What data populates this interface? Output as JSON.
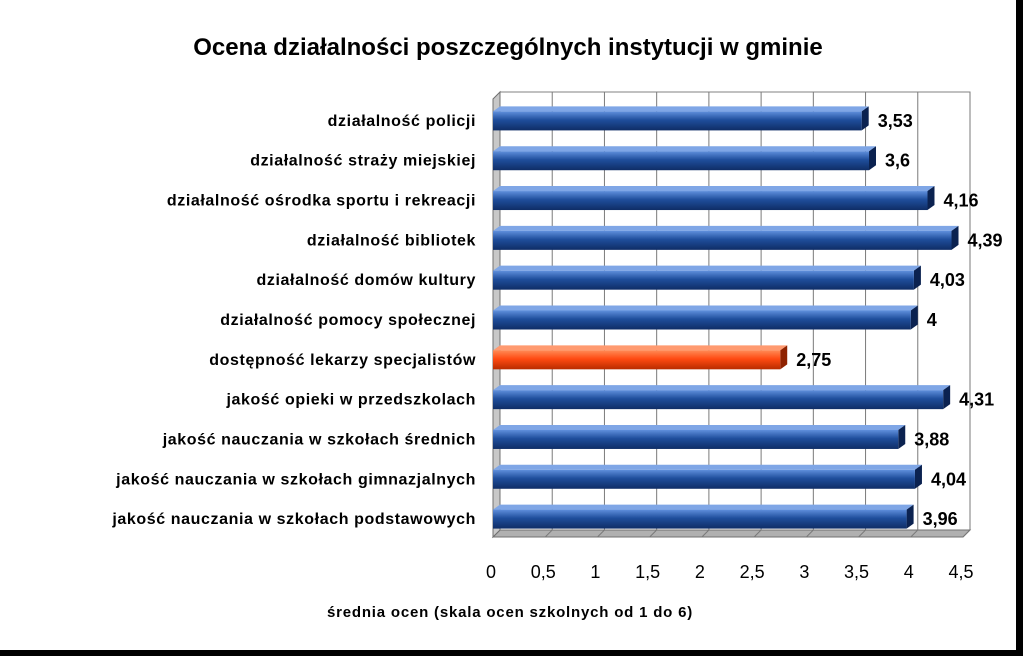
{
  "chart_data": {
    "type": "bar",
    "orientation": "horizontal",
    "title": "Ocena działalności poszczególnych instytucji w gminie",
    "xlabel": "średnia ocen (skala ocen szkolnych od 1 do 6)",
    "ylabel": "",
    "xlim": [
      0,
      4.5
    ],
    "x_ticks": [
      "0",
      "0,5",
      "1",
      "1,5",
      "2",
      "2,5",
      "3",
      "3,5",
      "4",
      "4,5"
    ],
    "grid": true,
    "categories": [
      "działalność policji",
      "działalność straży miejskiej",
      "działalność ośrodka sportu i rekreacji",
      "działalność bibliotek",
      "działalność domów kultury",
      "działalność pomocy społecznej",
      "dostępność lekarzy specjalistów",
      "jakość opieki w przedszkolach",
      "jakość nauczania w szkołach średnich",
      "jakość nauczania w szkołach gimnazjalnych",
      "jakość nauczania w szkołach podstawowych"
    ],
    "values": [
      3.53,
      3.6,
      4.16,
      4.39,
      4.03,
      4,
      2.75,
      4.31,
      3.88,
      4.04,
      3.96
    ],
    "value_labels": [
      "3,53",
      "3,6",
      "4,16",
      "4,39",
      "4,03",
      "4",
      "2,75",
      "4,31",
      "3,88",
      "4,04",
      "3,96"
    ],
    "colors": {
      "default_bar": "#1f4e9c",
      "highlight_bar": "#ff4a12",
      "highlight_index": 6
    }
  }
}
